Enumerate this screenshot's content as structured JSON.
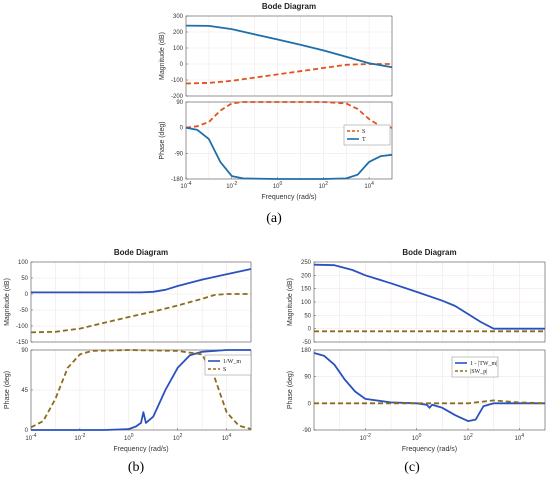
{
  "figure_labels": [
    "(a)",
    "(b)",
    "(c)"
  ],
  "chart_data": [
    {
      "type": "line",
      "panel": "a",
      "title": "Bode Diagram",
      "xlabel": "Frequency  (rad/s)",
      "xscale": "log",
      "xlim_exp": [
        -4,
        5
      ],
      "x_tick_labels": [
        "10^-4",
        "10^-2",
        "10^0",
        "10^2",
        "10^4"
      ],
      "magnitude": {
        "ylabel": "Magnitude (dB)",
        "ylim": [
          -200,
          300
        ],
        "y_ticks": [
          300,
          200,
          100,
          0,
          -100,
          -200
        ],
        "series": [
          {
            "name": "S",
            "color": "#e0521f",
            "dash": true,
            "x_exp": [
              -4,
              -3,
              -2,
              -1,
              0,
              1,
              2,
              3,
              4,
              5
            ],
            "values": [
              -122,
              -118,
              -105,
              -85,
              -65,
              -45,
              -25,
              -5,
              0,
              0
            ]
          },
          {
            "name": "T",
            "color": "#1f6ea8",
            "dash": false,
            "x_exp": [
              -4,
              -3,
              -2,
              -1,
              0,
              1,
              2,
              3,
              4,
              5
            ],
            "values": [
              240,
              238,
              218,
              185,
              153,
              120,
              85,
              45,
              5,
              -20
            ]
          }
        ]
      },
      "phase": {
        "ylabel": "Phase (deg)",
        "ylim": [
          -180,
          90
        ],
        "y_ticks": [
          90,
          0,
          -90,
          -180
        ],
        "series": [
          {
            "name": "S",
            "color": "#e0521f",
            "dash": true,
            "x_exp": [
              -4,
              -3.5,
              -3,
              -2.5,
              -2,
              -1.5,
              0,
              2,
              3,
              3.5,
              4,
              4.5,
              5
            ],
            "values": [
              0,
              5,
              20,
              60,
              85,
              90,
              90,
              90,
              85,
              65,
              30,
              5,
              0
            ]
          },
          {
            "name": "T",
            "color": "#1f6ea8",
            "dash": false,
            "x_exp": [
              -4,
              -3.5,
              -3,
              -2.5,
              -2,
              -1.5,
              0,
              2,
              3,
              3.5,
              4,
              4.5,
              5
            ],
            "values": [
              0,
              -8,
              -40,
              -120,
              -170,
              -178,
              -180,
              -180,
              -178,
              -165,
              -120,
              -100,
              -95
            ]
          }
        ]
      },
      "legend": [
        "S",
        "T"
      ]
    },
    {
      "type": "line",
      "panel": "b",
      "title": "Bode Diagram",
      "xlabel": "Frequency  (rad/s)",
      "xscale": "log",
      "xlim_exp": [
        -4,
        5
      ],
      "x_tick_labels": [
        "10^-4",
        "10^-2",
        "10^0",
        "10^2",
        "10^4"
      ],
      "magnitude": {
        "ylabel": "Magnitude (dB)",
        "ylim": [
          -150,
          100
        ],
        "y_ticks": [
          100,
          50,
          0,
          -50,
          -100,
          -150
        ],
        "series": [
          {
            "name": "1/W_m",
            "color": "#2a52be",
            "dash": false,
            "x_exp": [
              -4,
              -3,
              -2,
              -1,
              0,
              0.5,
              1,
              1.5,
              2,
              3,
              4,
              5
            ],
            "values": [
              5,
              5,
              5,
              5,
              5,
              5,
              7,
              13,
              25,
              45,
              62,
              78
            ]
          },
          {
            "name": "S",
            "color": "#8a6d1c",
            "dash": true,
            "x_exp": [
              -4,
              -3,
              -2,
              -1,
              0,
              1,
              2,
              3,
              3.5,
              4,
              5
            ],
            "values": [
              -120,
              -118,
              -108,
              -90,
              -72,
              -55,
              -36,
              -15,
              -3,
              0,
              0
            ]
          }
        ]
      },
      "phase": {
        "ylabel": "Phase (deg)",
        "ylim": [
          0,
          90
        ],
        "y_ticks": [
          90,
          45,
          0
        ],
        "series": [
          {
            "name": "1/W_m",
            "color": "#2a52be",
            "dash": false,
            "x_exp": [
              -4,
              -1,
              0,
              0.3,
              0.5,
              0.6,
              0.7,
              1,
              1.5,
              2,
              2.5,
              3,
              4,
              5
            ],
            "values": [
              0,
              0,
              1,
              4,
              8,
              20,
              8,
              15,
              45,
              70,
              84,
              88,
              90,
              90
            ]
          },
          {
            "name": "S",
            "color": "#8a6d1c",
            "dash": true,
            "x_exp": [
              -4,
              -3.5,
              -3,
              -2.5,
              -2,
              -1.5,
              0,
              2,
              3,
              3.5,
              4,
              4.5,
              5
            ],
            "values": [
              3,
              10,
              35,
              70,
              85,
              89,
              90,
              89,
              85,
              60,
              20,
              5,
              1
            ]
          }
        ]
      },
      "legend": [
        "1/W_m",
        "S"
      ]
    },
    {
      "type": "line",
      "panel": "c",
      "title": "Bode Diagram",
      "xlabel": "Frequency  (rad/s)",
      "xscale": "log",
      "xlim_exp": [
        -4,
        5
      ],
      "x_tick_labels": [
        "10^-2",
        "10^0",
        "10^2",
        "10^4"
      ],
      "magnitude": {
        "ylabel": "Magnitude (dB)",
        "ylim": [
          -50,
          250
        ],
        "y_ticks": [
          250,
          200,
          150,
          100,
          50,
          0,
          -50
        ],
        "series": [
          {
            "name": "1 - |TW_m|",
            "color": "#2a52be",
            "dash": false,
            "x_exp": [
              -4,
              -3.2,
              -2.5,
              -2,
              -1,
              0,
              1,
              1.5,
              2,
              2.5,
              3,
              4,
              5
            ],
            "values": [
              240,
              238,
              220,
              200,
              170,
              138,
              105,
              85,
              55,
              25,
              0,
              0,
              0
            ]
          },
          {
            "name": "|SW_p|",
            "color": "#8a6d1c",
            "dash": true,
            "x_exp": [
              -4,
              5
            ],
            "values": [
              -10,
              -10
            ]
          }
        ]
      },
      "phase": {
        "ylabel": "Phase (deg)",
        "ylim": [
          -90,
          180
        ],
        "y_ticks": [
          180,
          90,
          0,
          -90
        ],
        "series": [
          {
            "name": "1 - |TW_m|",
            "color": "#2a52be",
            "dash": false,
            "x_exp": [
              -4,
              -3.6,
              -3.2,
              -2.8,
              -2.4,
              -2,
              -1,
              0,
              0.4,
              0.5,
              0.6,
              1,
              1.5,
              2,
              2.3,
              2.6,
              3,
              4,
              5
            ],
            "values": [
              170,
              160,
              130,
              80,
              40,
              15,
              3,
              0,
              -5,
              -15,
              -5,
              -15,
              -40,
              -60,
              -55,
              -10,
              0,
              0,
              0
            ]
          },
          {
            "name": "|SW_p|",
            "color": "#8a6d1c",
            "dash": true,
            "x_exp": [
              -4,
              2,
              3,
              4,
              5
            ],
            "values": [
              0,
              0,
              10,
              3,
              0
            ]
          }
        ]
      },
      "legend": [
        "1 - |TW_m|",
        "|SW_p|"
      ]
    }
  ]
}
